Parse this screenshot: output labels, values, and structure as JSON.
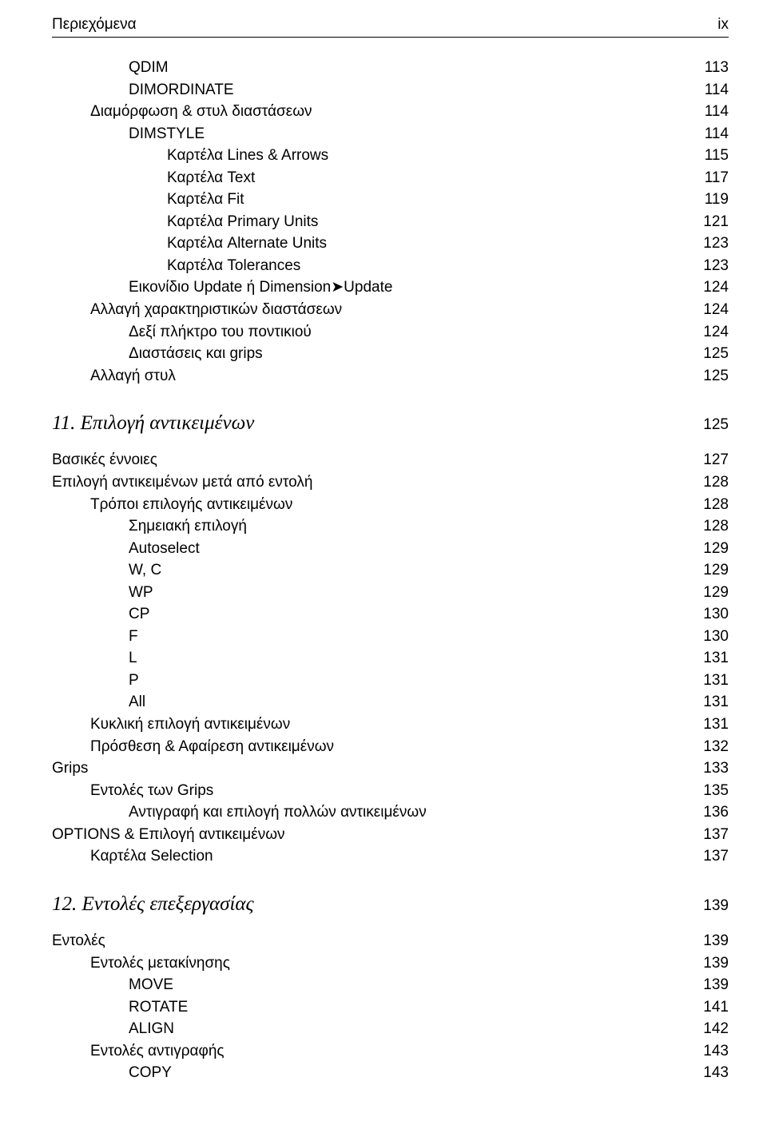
{
  "header": {
    "left": "Περιεχόμενα",
    "right": "ix"
  },
  "entries": [
    {
      "label": "QDIM",
      "page": "113",
      "indent": 2
    },
    {
      "label": "DIMORDINATE",
      "page": "114",
      "indent": 2
    },
    {
      "label": "Διαμόρφωση & στυλ διαστάσεων",
      "page": "114",
      "indent": 1
    },
    {
      "label": "DIMSTYLE",
      "page": "114",
      "indent": 2
    },
    {
      "label": "Καρτέλα Lines & Arrows",
      "page": "115",
      "indent": 3
    },
    {
      "label": "Καρτέλα Text",
      "page": "117",
      "indent": 3
    },
    {
      "label": "Καρτέλα Fit",
      "page": "119",
      "indent": 3
    },
    {
      "label": "Καρτέλα Primary Units",
      "page": "121",
      "indent": 3
    },
    {
      "label": "Καρτέλα Alternate Units",
      "page": "123",
      "indent": 3
    },
    {
      "label": "Καρτέλα Tolerances",
      "page": "123",
      "indent": 3
    },
    {
      "label": "Εικονίδιο Update ή Dimension➤Update",
      "page": "124",
      "indent": 2
    },
    {
      "label": "Αλλαγή χαρακτηριστικών διαστάσεων",
      "page": "124",
      "indent": 1
    },
    {
      "label": "Δεξί πλήκτρο του ποντικιού",
      "page": "124",
      "indent": 2
    },
    {
      "label": "Διαστάσεις και grips",
      "page": "125",
      "indent": 2
    },
    {
      "label": "Αλλαγή στυλ",
      "page": "125",
      "indent": 1
    },
    {
      "type": "section",
      "label": "11. Επιλογή αντικειμένων",
      "page": "125"
    },
    {
      "label": "Βασικές έννοιες",
      "page": "127",
      "indent": 0
    },
    {
      "label": "Επιλογή αντικειμένων μετά από εντολή",
      "page": "128",
      "indent": 0
    },
    {
      "label": "Τρόποι επιλογής αντικειμένων",
      "page": "128",
      "indent": 1
    },
    {
      "label": "Σημειακή επιλογή",
      "page": "128",
      "indent": 2
    },
    {
      "label": "Autoselect",
      "page": "129",
      "indent": 2
    },
    {
      "label": "W, C",
      "page": "129",
      "indent": 2
    },
    {
      "label": "WP",
      "page": "129",
      "indent": 2
    },
    {
      "label": "CP",
      "page": "130",
      "indent": 2
    },
    {
      "label": "F",
      "page": "130",
      "indent": 2
    },
    {
      "label": "L",
      "page": "131",
      "indent": 2
    },
    {
      "label": "P",
      "page": "131",
      "indent": 2
    },
    {
      "label": "All",
      "page": "131",
      "indent": 2
    },
    {
      "label": "Κυκλική επιλογή αντικειμένων",
      "page": "131",
      "indent": 1
    },
    {
      "label": "Πρόσθεση & Αφαίρεση αντικειμένων",
      "page": "132",
      "indent": 1
    },
    {
      "label": "Grips",
      "page": "133",
      "indent": 0
    },
    {
      "label": "Εντολές των Grips",
      "page": "135",
      "indent": 1
    },
    {
      "label": "Αντιγραφή και επιλογή πολλών αντικειμένων",
      "page": "136",
      "indent": 2
    },
    {
      "label": "OPTIONS & Επιλογή αντικειμένων",
      "page": "137",
      "indent": 0
    },
    {
      "label": "Καρτέλα Selection",
      "page": "137",
      "indent": 1
    },
    {
      "type": "section",
      "label": "12. Εντολές επεξεργασίας",
      "page": "139"
    },
    {
      "label": "Εντολές",
      "page": "139",
      "indent": 0
    },
    {
      "label": "Εντολές μετακίνησης",
      "page": "139",
      "indent": 1
    },
    {
      "label": "MOVE",
      "page": "139",
      "indent": 2
    },
    {
      "label": "ROTATE",
      "page": "141",
      "indent": 2
    },
    {
      "label": "ALIGN",
      "page": "142",
      "indent": 2
    },
    {
      "label": "Εντολές αντιγραφής",
      "page": "143",
      "indent": 1
    },
    {
      "label": "COPY",
      "page": "143",
      "indent": 2
    }
  ]
}
